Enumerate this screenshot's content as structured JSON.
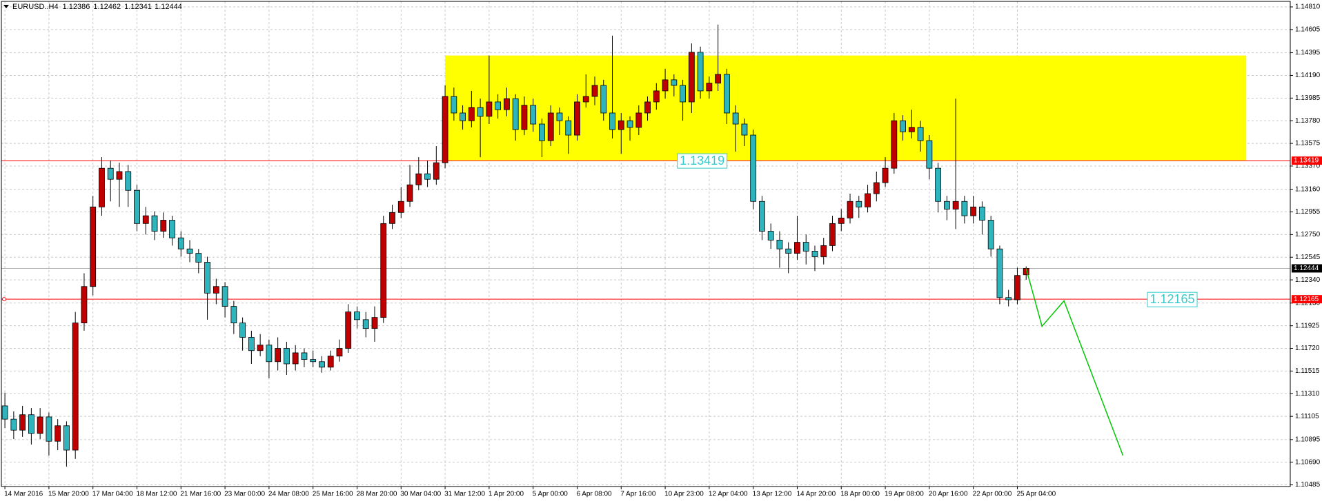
{
  "chart_data": {
    "type": "candlestick",
    "symbol": "EURUSD..H4",
    "grid": true,
    "up_color": "#c00000",
    "down_color": "#2eb4bd",
    "ylim": [
      1.1047,
      1.1486
    ],
    "xlim": [
      -0.4,
      146
    ],
    "yticks": [
      {
        "value": 1.1481,
        "label": "1.14810"
      },
      1.14605,
      1.14395,
      {
        "value": 1.1419,
        "label": "1.14190"
      },
      1.13985,
      {
        "value": 1.1378,
        "label": "1.13780"
      },
      1.13575,
      {
        "value": 1.1337,
        "label": "1.13370"
      },
      {
        "value": 1.1316,
        "label": "1.13160"
      },
      1.12955,
      {
        "value": 1.1275,
        "label": "1.12750"
      },
      1.12545,
      {
        "value": 1.1234,
        "label": "1.12340"
      },
      {
        "value": 1.1213,
        "label": "1.12130"
      },
      1.11925,
      {
        "value": 1.1172,
        "label": "1.11720"
      },
      1.11515,
      {
        "value": 1.1131,
        "label": "1.11310"
      },
      1.11105,
      1.10895,
      {
        "value": 1.1069,
        "label": "1.10690"
      },
      1.10485
    ],
    "categories": [
      "14 Mar 2016",
      null,
      null,
      null,
      null,
      "15 Mar 20:00",
      null,
      null,
      null,
      null,
      "17 Mar 04:00",
      null,
      null,
      null,
      null,
      "18 Mar 12:00",
      null,
      null,
      null,
      null,
      "21 Mar 16:00",
      null,
      null,
      null,
      null,
      "23 Mar 00:00",
      null,
      null,
      null,
      null,
      "24 Mar 08:00",
      null,
      null,
      null,
      null,
      "25 Mar 16:00",
      null,
      null,
      null,
      null,
      "28 Mar 20:00",
      null,
      null,
      null,
      null,
      "30 Mar 04:00",
      null,
      null,
      null,
      null,
      "31 Mar 12:00",
      null,
      null,
      null,
      null,
      "1 Apr 20:00",
      null,
      null,
      null,
      null,
      "5 Apr 00:00",
      null,
      null,
      null,
      null,
      "6 Apr 08:00",
      null,
      null,
      null,
      null,
      "7 Apr 16:00",
      null,
      null,
      null,
      null,
      "10 Apr 23:00",
      null,
      null,
      null,
      null,
      "12 Apr 04:00",
      null,
      null,
      null,
      null,
      "13 Apr 12:00",
      null,
      null,
      null,
      null,
      "14 Apr 20:00",
      null,
      null,
      null,
      null,
      "18 Apr 00:00",
      null,
      null,
      null,
      null,
      "19 Apr 08:00",
      null,
      null,
      null,
      null,
      "20 Apr 16:00",
      null,
      null,
      null,
      null,
      "22 Apr 00:00",
      null,
      null,
      null,
      null,
      "25 Apr 04:00",
      null
    ],
    "ohlc": [
      [
        1.112,
        1.1132,
        1.11,
        1.1108
      ],
      [
        1.1108,
        1.1115,
        1.109,
        1.1098
      ],
      [
        1.1098,
        1.112,
        1.1092,
        1.1112
      ],
      [
        1.1112,
        1.1118,
        1.1085,
        1.1095
      ],
      [
        1.1095,
        1.1118,
        1.109,
        1.111
      ],
      [
        1.111,
        1.1114,
        1.1075,
        1.1088
      ],
      [
        1.1088,
        1.1108,
        1.108,
        1.1102
      ],
      [
        1.1102,
        1.1106,
        1.1065,
        1.108
      ],
      [
        1.108,
        1.1205,
        1.1072,
        1.1195
      ],
      [
        1.1195,
        1.124,
        1.1188,
        1.1228
      ],
      [
        1.1228,
        1.131,
        1.122,
        1.13
      ],
      [
        1.13,
        1.1345,
        1.1292,
        1.1335
      ],
      [
        1.1335,
        1.1342,
        1.1305,
        1.1325
      ],
      [
        1.1325,
        1.134,
        1.13,
        1.1332
      ],
      [
        1.1332,
        1.1338,
        1.13,
        1.1315
      ],
      [
        1.1315,
        1.132,
        1.1278,
        1.1285
      ],
      [
        1.1285,
        1.13,
        1.1275,
        1.1292
      ],
      [
        1.1292,
        1.1296,
        1.127,
        1.1278
      ],
      [
        1.1278,
        1.1295,
        1.1272,
        1.1288
      ],
      [
        1.1288,
        1.1292,
        1.1265,
        1.1272
      ],
      [
        1.1272,
        1.1278,
        1.1255,
        1.1262
      ],
      [
        1.1262,
        1.127,
        1.125,
        1.1258
      ],
      [
        1.1258,
        1.1262,
        1.124,
        1.125
      ],
      [
        1.125,
        1.1255,
        1.1198,
        1.1222
      ],
      [
        1.1222,
        1.1235,
        1.1212,
        1.1228
      ],
      [
        1.1228,
        1.1232,
        1.12,
        1.121
      ],
      [
        1.121,
        1.1215,
        1.1185,
        1.1195
      ],
      [
        1.1195,
        1.12,
        1.117,
        1.1182
      ],
      [
        1.1182,
        1.1188,
        1.1158,
        1.117
      ],
      [
        1.117,
        1.1185,
        1.1165,
        1.1175
      ],
      [
        1.1175,
        1.118,
        1.1145,
        1.116
      ],
      [
        1.116,
        1.1182,
        1.1152,
        1.1172
      ],
      [
        1.1172,
        1.1178,
        1.1148,
        1.1158
      ],
      [
        1.1158,
        1.1175,
        1.1152,
        1.1168
      ],
      [
        1.1168,
        1.1172,
        1.1155,
        1.1162
      ],
      [
        1.1162,
        1.117,
        1.1155,
        1.116
      ],
      [
        1.116,
        1.1165,
        1.115,
        1.1155
      ],
      [
        1.1155,
        1.117,
        1.1152,
        1.1165
      ],
      [
        1.1165,
        1.118,
        1.116,
        1.1172
      ],
      [
        1.1172,
        1.1212,
        1.1168,
        1.1205
      ],
      [
        1.1205,
        1.121,
        1.119,
        1.1198
      ],
      [
        1.1198,
        1.1205,
        1.1182,
        1.119
      ],
      [
        1.119,
        1.121,
        1.1178,
        1.12
      ],
      [
        1.12,
        1.1292,
        1.1195,
        1.1285
      ],
      [
        1.1285,
        1.1302,
        1.128,
        1.1295
      ],
      [
        1.1295,
        1.1318,
        1.129,
        1.1305
      ],
      [
        1.1305,
        1.1338,
        1.13,
        1.132
      ],
      [
        1.132,
        1.1345,
        1.1315,
        1.133
      ],
      [
        1.133,
        1.1342,
        1.1318,
        1.1325
      ],
      [
        1.1325,
        1.1355,
        1.132,
        1.134
      ],
      [
        1.134,
        1.141,
        1.1335,
        1.14
      ],
      [
        1.14,
        1.1408,
        1.1378,
        1.1385
      ],
      [
        1.1385,
        1.1392,
        1.137,
        1.1378
      ],
      [
        1.1378,
        1.1405,
        1.1372,
        1.139
      ],
      [
        1.139,
        1.1398,
        1.1345,
        1.1382
      ],
      [
        1.1382,
        1.1437,
        1.1375,
        1.1395
      ],
      [
        1.1395,
        1.1402,
        1.138,
        1.1388
      ],
      [
        1.1388,
        1.1408,
        1.1382,
        1.1398
      ],
      [
        1.1398,
        1.1402,
        1.136,
        1.137
      ],
      [
        1.137,
        1.14,
        1.1365,
        1.1392
      ],
      [
        1.1392,
        1.1398,
        1.1368,
        1.1375
      ],
      [
        1.1375,
        1.138,
        1.1345,
        1.136
      ],
      [
        1.136,
        1.1392,
        1.1355,
        1.1385
      ],
      [
        1.1385,
        1.139,
        1.1365,
        1.1378
      ],
      [
        1.1378,
        1.1382,
        1.1348,
        1.1365
      ],
      [
        1.1365,
        1.1402,
        1.136,
        1.1395
      ],
      [
        1.1395,
        1.142,
        1.139,
        1.14
      ],
      [
        1.14,
        1.1418,
        1.1392,
        1.141
      ],
      [
        1.141,
        1.1415,
        1.1378,
        1.1385
      ],
      [
        1.1385,
        1.1455,
        1.1362,
        1.137
      ],
      [
        1.137,
        1.1385,
        1.1348,
        1.1378
      ],
      [
        1.1378,
        1.1382,
        1.136,
        1.1372
      ],
      [
        1.1372,
        1.1392,
        1.1365,
        1.1385
      ],
      [
        1.1385,
        1.14,
        1.1378,
        1.1395
      ],
      [
        1.1395,
        1.1412,
        1.1388,
        1.1405
      ],
      [
        1.1405,
        1.1425,
        1.1398,
        1.1415
      ],
      [
        1.1415,
        1.142,
        1.14,
        1.141
      ],
      [
        1.141,
        1.1415,
        1.1378,
        1.1395
      ],
      [
        1.1395,
        1.1448,
        1.1385,
        1.144
      ],
      [
        1.144,
        1.1445,
        1.1398,
        1.1405
      ],
      [
        1.1405,
        1.1418,
        1.1398,
        1.1412
      ],
      [
        1.1412,
        1.1465,
        1.1405,
        1.142
      ],
      [
        1.142,
        1.1425,
        1.1375,
        1.1385
      ],
      [
        1.1385,
        1.1392,
        1.135,
        1.1375
      ],
      [
        1.1375,
        1.138,
        1.1355,
        1.1365
      ],
      [
        1.1365,
        1.137,
        1.1298,
        1.1305
      ],
      [
        1.1305,
        1.131,
        1.127,
        1.1278
      ],
      [
        1.1278,
        1.1285,
        1.1262,
        1.127
      ],
      [
        1.127,
        1.1278,
        1.1245,
        1.1262
      ],
      [
        1.1262,
        1.1268,
        1.124,
        1.1258
      ],
      [
        1.1258,
        1.1292,
        1.1252,
        1.1268
      ],
      [
        1.1268,
        1.1275,
        1.1248,
        1.126
      ],
      [
        1.126,
        1.1265,
        1.1242,
        1.1255
      ],
      [
        1.1255,
        1.1272,
        1.1248,
        1.1265
      ],
      [
        1.1265,
        1.1292,
        1.126,
        1.1285
      ],
      [
        1.1285,
        1.1298,
        1.1278,
        1.129
      ],
      [
        1.129,
        1.1312,
        1.1285,
        1.1305
      ],
      [
        1.1305,
        1.131,
        1.129,
        1.13
      ],
      [
        1.13,
        1.132,
        1.1295,
        1.1312
      ],
      [
        1.1312,
        1.1332,
        1.1305,
        1.1322
      ],
      [
        1.1322,
        1.1345,
        1.1318,
        1.1335
      ],
      [
        1.1335,
        1.1385,
        1.133,
        1.1378
      ],
      [
        1.1378,
        1.1383,
        1.136,
        1.1368
      ],
      [
        1.1368,
        1.1388,
        1.1362,
        1.1372
      ],
      [
        1.1372,
        1.1378,
        1.135,
        1.136
      ],
      [
        1.136,
        1.1365,
        1.1325,
        1.1335
      ],
      [
        1.1335,
        1.134,
        1.1295,
        1.1305
      ],
      [
        1.1305,
        1.131,
        1.1288,
        1.1298
      ],
      [
        1.1298,
        1.1398,
        1.128,
        1.1305
      ],
      [
        1.1305,
        1.131,
        1.1285,
        1.1292
      ],
      [
        1.1292,
        1.131,
        1.1285,
        1.13
      ],
      [
        1.13,
        1.1305,
        1.1275,
        1.1288
      ],
      [
        1.1288,
        1.1292,
        1.1255,
        1.1262
      ],
      [
        1.1262,
        1.1265,
        1.1212,
        1.1218
      ],
      [
        1.1218,
        1.1225,
        1.121,
        1.1216
      ],
      [
        1.1216,
        1.1245,
        1.1212,
        1.1238
      ],
      [
        1.12386,
        1.12462,
        1.12341,
        1.12444
      ]
    ],
    "zone": {
      "color": "#ffff00",
      "x": [
        50,
        141
      ],
      "y": [
        1.1342,
        1.1437
      ]
    },
    "levels": [
      {
        "value": 1.13419,
        "color": "#ff0000"
      },
      {
        "value": 1.12165,
        "color": "#ff0000"
      }
    ],
    "projection": {
      "color": "#00c800",
      "x": [
        116,
        117.8,
        120.3,
        127
      ],
      "y": [
        1.12444,
        1.1192,
        1.1215,
        1.1075
      ]
    }
  }
}
